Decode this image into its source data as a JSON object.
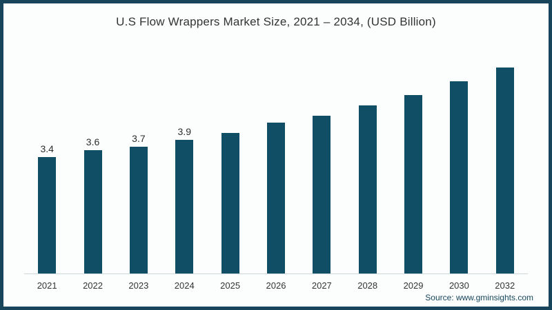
{
  "frame": {
    "border_color": "#16455C",
    "background_color": "#FCFDFD"
  },
  "title": "U.S Flow Wrappers Market Size, 2021 – 2034, (USD Billion)",
  "source": "Source: www.gminsights.com",
  "chart_data": {
    "type": "bar",
    "title": "U.S Flow Wrappers Market Size, 2021 – 2034, (USD Billion)",
    "categories": [
      "2021",
      "2022",
      "2023",
      "2024",
      "2025",
      "2026",
      "2027",
      "2028",
      "2029",
      "2030",
      "2032"
    ],
    "values": [
      3.4,
      3.6,
      3.7,
      3.9,
      4.1,
      4.4,
      4.6,
      4.9,
      5.2,
      5.6,
      6.0
    ],
    "data_labels": [
      "3.4",
      "3.6",
      "3.7",
      "3.9",
      null,
      null,
      null,
      null,
      null,
      null,
      null
    ],
    "xlabel": "",
    "ylabel": "",
    "ylim": [
      0,
      6.7
    ],
    "grid": false,
    "legend": false,
    "bar_color": "#0F4E64",
    "data_label_color": "#2D2D2D",
    "axis_line_color": "#CBD7DB",
    "tick_label_color": "#333333",
    "units": "USD Billion"
  }
}
